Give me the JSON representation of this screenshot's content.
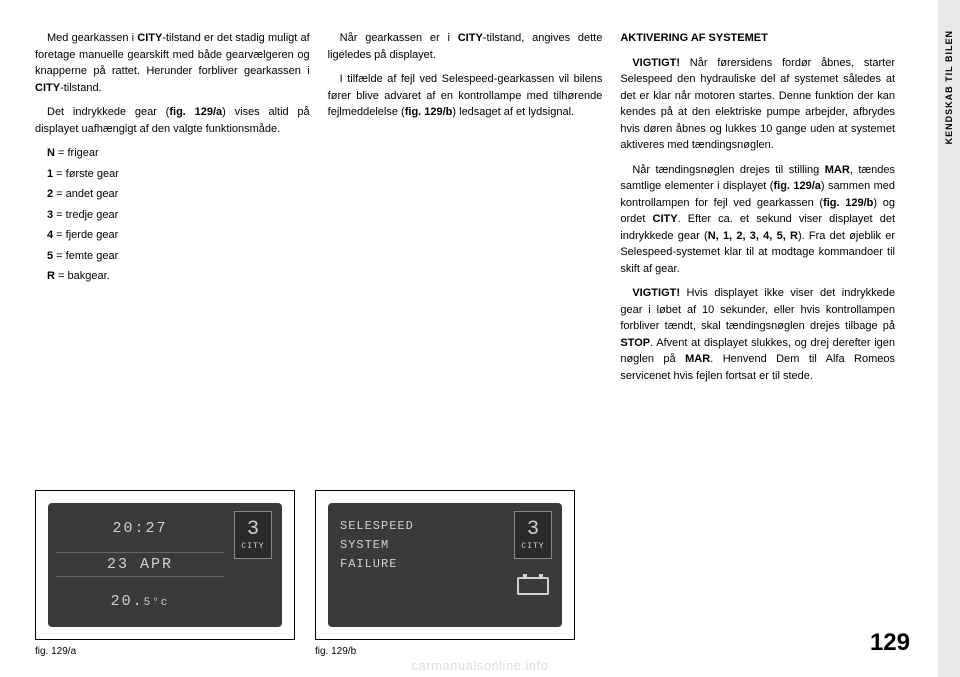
{
  "vertical_tab": "KENDSKAB TIL BILEN",
  "page_number": "129",
  "watermark": "carmanualsonline.info",
  "col1": {
    "p1_pre": "Med gearkassen i ",
    "p1_bold": "CITY",
    "p1_post": "-tilstand er det stadig muligt af foretage manuelle gearskift med både gearvælgeren og knapperne på rattet. Herunder forbliver gearkassen i ",
    "p1_bold2": "CITY",
    "p1_post2": "-tilstand.",
    "p2_pre": "Det indrykkede gear (",
    "p2_bold": "fig. 129/a",
    "p2_post": ") vises altid på displayet uafhængigt af den valgte funktionsmåde.",
    "gears": [
      {
        "key": "N",
        "label": " = frigear"
      },
      {
        "key": "1",
        "label": " = første gear"
      },
      {
        "key": "2",
        "label": " = andet gear"
      },
      {
        "key": "3",
        "label": " = tredje gear"
      },
      {
        "key": "4",
        "label": " = fjerde gear"
      },
      {
        "key": "5",
        "label": " = femte gear"
      },
      {
        "key": "R",
        "label": " = bakgear."
      }
    ]
  },
  "col2": {
    "p1_pre": "Når gearkassen er i ",
    "p1_bold": "CITY",
    "p1_post": "-tilstand, angives dette ligeledes på displayet.",
    "p2_pre": "I tilfælde af fejl ved Selespeed-gearkassen vil bilens fører blive advaret af en kontrollampe med tilhørende fejlmeddelelse (",
    "p2_bold": "fig. 129/b",
    "p2_post": ") ledsaget af et lydsignal."
  },
  "col3": {
    "heading": "AKTIVERING AF SYSTEMET",
    "p1_bold": "VIGTIGT!",
    "p1": " Når førersidens fordør åbnes, starter Selespeed den hydrauliske del af systemet således at det er klar når motoren startes. Denne funktion der kan kendes på at den elektriske pumpe arbejder, afbrydes hvis døren åbnes og lukkes 10 gange uden at systemet aktiveres med tændingsnøglen.",
    "p2_pre": "Når tændingsnøglen drejes til stilling ",
    "p2_bold1": "MAR",
    "p2_mid1": ", tændes samtlige elementer i displayet (",
    "p2_bold2": "fig. 129/a",
    "p2_mid2": ") sammen med kontrollampen for fejl ved gearkassen (",
    "p2_bold3": "fig. 129/b",
    "p2_mid3": ") og ordet ",
    "p2_bold4": "CITY",
    "p2_mid4": ". Efter ca. et sekund viser displayet det indrykkede gear (",
    "p2_bold5": "N, 1, 2, 3, 4, 5, R",
    "p2_post": "). Fra det øjeblik er Selespeed-systemet klar til at modtage kommandoer til skift af gear.",
    "p3_bold": "VIGTIGT!",
    "p3_pre": " Hvis displayet ikke viser det indrykkede gear i løbet af 10 sekunder, eller hvis kontrollampen forbliver tændt, skal tændingsnøglen drejes tilbage på ",
    "p3_bold2": "STOP",
    "p3_mid": ". Afvent at displayet slukkes, og drej derefter igen nøglen på ",
    "p3_bold3": "MAR",
    "p3_post": ". Henvend Dem til Alfa Romeos servicenet hvis fejlen fortsat er til stede."
  },
  "fig_a": {
    "time": "20:27",
    "date": "23 APR",
    "temp_main": "20.",
    "temp_dec": "5°c",
    "gear": "3",
    "mode": "CITY",
    "caption": "fig. 129/a"
  },
  "fig_b": {
    "line1": "SELESPEED",
    "line2": "SYSTEM",
    "line3": "FAILURE",
    "gear": "3",
    "mode": "CITY",
    "caption": "fig. 129/b"
  }
}
